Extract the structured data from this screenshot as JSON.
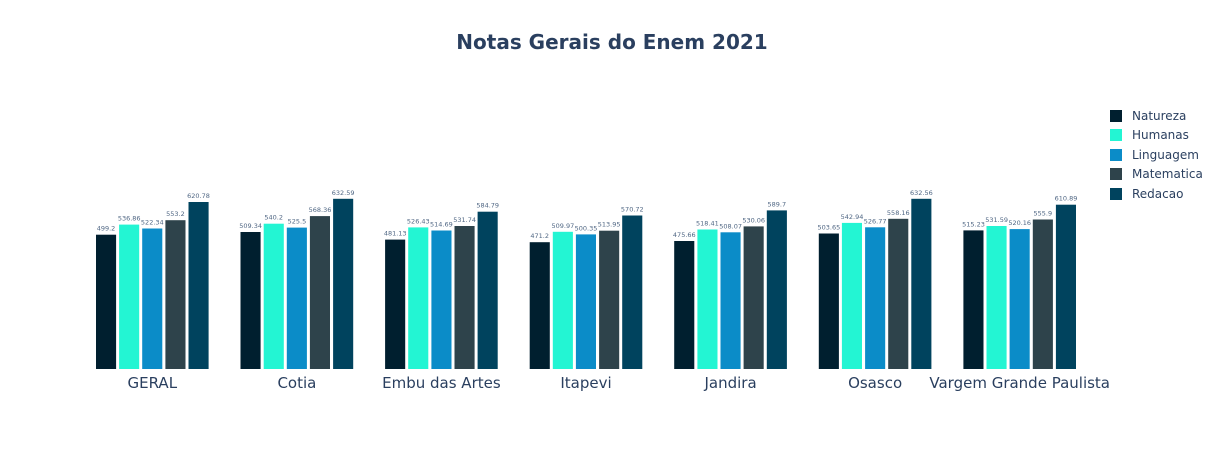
{
  "chart_data": {
    "type": "bar",
    "title": "Notas Gerais do Enem 2021",
    "xlabel": "",
    "ylabel": "",
    "categories": [
      "GERAL",
      "Cotia",
      "Embu das Artes",
      "Itapevi",
      "Jandira",
      "Osasco",
      "Vargem Grande Paulista"
    ],
    "series": [
      {
        "name": "Natureza",
        "color": "#001f2f",
        "values": [
          499.2,
          509.34,
          481.13,
          471.2,
          475.66,
          503.65,
          515.23
        ]
      },
      {
        "name": "Humanas",
        "color": "#23f5d3",
        "values": [
          536.86,
          540.2,
          526.43,
          509.97,
          518.41,
          542.94,
          531.59
        ]
      },
      {
        "name": "Linguagem",
        "color": "#0b8cc8",
        "values": [
          522.34,
          525.5,
          514.69,
          500.35,
          508.07,
          526.77,
          520.16
        ]
      },
      {
        "name": "Matematica",
        "color": "#2e434b",
        "values": [
          553.2,
          568.36,
          531.74,
          513.95,
          530.06,
          558.16,
          555.9
        ]
      },
      {
        "name": "Redacao",
        "color": "#00435e",
        "values": [
          620.78,
          632.59,
          584.79,
          570.72,
          589.7,
          632.56,
          610.89
        ]
      }
    ],
    "legend_position": "top-right",
    "grid": false,
    "show_y_axis": false
  }
}
